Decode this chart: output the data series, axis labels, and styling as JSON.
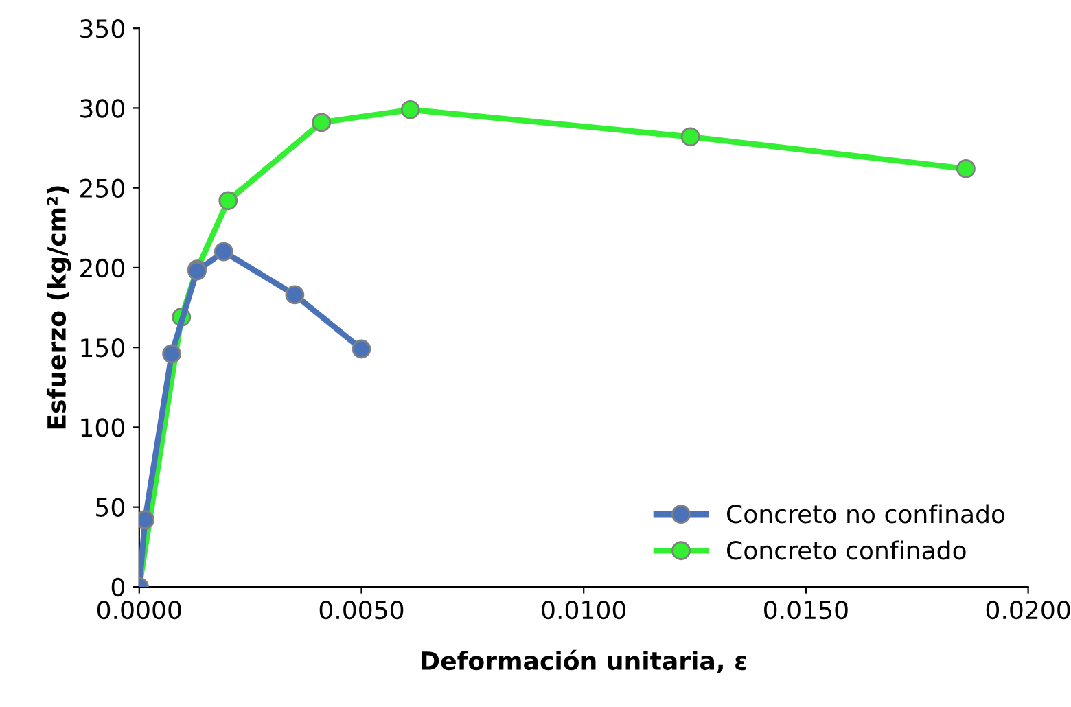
{
  "chart_data": {
    "type": "line",
    "xlabel": "Deformación unitaria, ε",
    "ylabel": "Esfuerzo (kg/cm²)",
    "xlim": [
      0,
      0.02
    ],
    "xticks": [
      {
        "value": 0,
        "label": "0.0000"
      },
      {
        "value": 0.005,
        "label": "0.0050"
      },
      {
        "value": 0.01,
        "label": "0.0100"
      },
      {
        "value": 0.015,
        "label": "0.0150"
      },
      {
        "value": 0.02,
        "label": "0.0200"
      }
    ],
    "ylim": [
      0,
      350
    ],
    "yticks": [
      0,
      50,
      100,
      150,
      200,
      250,
      300,
      350
    ],
    "marker": "circle",
    "line_style": "solid",
    "legend": "bottom right",
    "grid": false,
    "series": [
      {
        "name": "Concreto no confinado",
        "color": "#4a72b8",
        "x": [
          0,
          0.00013,
          0.00073,
          0.0013,
          0.0019,
          0.0035,
          0.005
        ],
        "values": [
          0,
          42,
          146,
          198,
          210,
          183,
          149
        ]
      },
      {
        "name": "Concreto confinado",
        "color": "#33ee33",
        "x": [
          0,
          0.00095,
          0.0013,
          0.002,
          0.0041,
          0.0061,
          0.0124,
          0.0186
        ],
        "values": [
          0,
          169,
          199,
          242,
          291,
          299,
          282,
          262
        ]
      }
    ]
  }
}
